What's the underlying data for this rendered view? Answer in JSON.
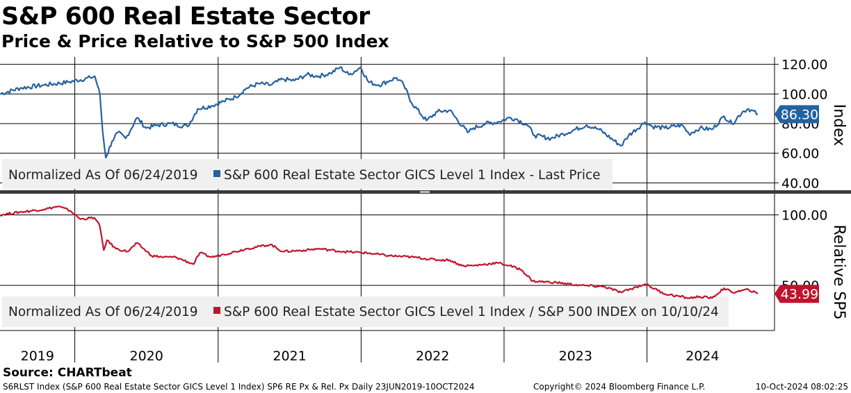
{
  "header": {
    "title": "S&P 600 Real Estate Sector",
    "subtitle": "Price & Price Relative to S&P 500 Index"
  },
  "footer": {
    "source": "Source: CHARTbeat",
    "description": "S6RLST Index (S&P 600 Real Estate Sector GICS Level 1 Index) SP6 RE Px & Rel. Px  Daily 23JUN2019-10OCT2024",
    "copyright": "Copyright© 2024 Bloomberg Finance L.P.",
    "timestamp": "10-Oct-2024 08:02:25"
  },
  "colors": {
    "price_line": "#2461a1",
    "relative_line": "#c0142c",
    "grid": "#000000",
    "legend_bg": "#f0f0f0",
    "separator": "#3a3a3a"
  },
  "chart_data": [
    {
      "type": "line",
      "panel": "top",
      "side_label": "Index",
      "legend": {
        "prefix": "Normalized As Of 06/24/2019",
        "series": "S&P 600 Real Estate Sector GICS Level 1 Index - Last Price",
        "placement": "bottom-left"
      },
      "yticks": [
        "120.00",
        "100.00",
        "80.00",
        "60.00",
        "40.00"
      ],
      "ytick_values": [
        120,
        100,
        80,
        60,
        40
      ],
      "ylim": [
        35,
        125
      ],
      "last_value": 86.3,
      "last_label": "86.30",
      "points": [
        [
          "2019-06-24",
          100
        ],
        [
          "2019-08-15",
          104
        ],
        [
          "2019-10-15",
          106
        ],
        [
          "2019-12-15",
          108
        ],
        [
          "2020-02-10",
          111
        ],
        [
          "2020-02-21",
          112
        ],
        [
          "2020-03-05",
          100
        ],
        [
          "2020-03-12",
          75
        ],
        [
          "2020-03-20",
          57
        ],
        [
          "2020-04-05",
          68
        ],
        [
          "2020-04-20",
          74
        ],
        [
          "2020-05-10",
          70
        ],
        [
          "2020-06-08",
          84
        ],
        [
          "2020-07-01",
          77
        ],
        [
          "2020-08-01",
          79
        ],
        [
          "2020-09-01",
          80
        ],
        [
          "2020-10-15",
          78
        ],
        [
          "2020-11-10",
          90
        ],
        [
          "2020-12-15",
          92
        ],
        [
          "2021-01-15",
          95
        ],
        [
          "2021-02-15",
          98
        ],
        [
          "2021-03-15",
          104
        ],
        [
          "2021-04-15",
          107
        ],
        [
          "2021-05-15",
          106
        ],
        [
          "2021-06-15",
          110
        ],
        [
          "2021-07-15",
          109
        ],
        [
          "2021-08-15",
          113
        ],
        [
          "2021-09-15",
          112
        ],
        [
          "2021-10-15",
          114
        ],
        [
          "2021-11-08",
          118
        ],
        [
          "2021-12-01",
          113
        ],
        [
          "2021-12-31",
          118
        ],
        [
          "2022-01-20",
          108
        ],
        [
          "2022-02-15",
          106
        ],
        [
          "2022-03-15",
          109
        ],
        [
          "2022-04-01",
          111
        ],
        [
          "2022-04-20",
          106
        ],
        [
          "2022-05-10",
          94
        ],
        [
          "2022-06-17",
          82
        ],
        [
          "2022-07-15",
          88
        ],
        [
          "2022-08-15",
          89
        ],
        [
          "2022-09-30",
          74
        ],
        [
          "2022-10-15",
          77
        ],
        [
          "2022-11-15",
          80
        ],
        [
          "2022-12-15",
          81
        ],
        [
          "2023-01-15",
          84
        ],
        [
          "2023-02-02",
          83
        ],
        [
          "2023-03-01",
          79
        ],
        [
          "2023-03-20",
          72
        ],
        [
          "2023-05-01",
          70
        ],
        [
          "2023-06-01",
          73
        ],
        [
          "2023-07-31",
          79
        ],
        [
          "2023-09-01",
          76
        ],
        [
          "2023-10-27",
          65
        ],
        [
          "2023-11-15",
          72
        ],
        [
          "2023-12-27",
          81
        ],
        [
          "2024-01-15",
          78
        ],
        [
          "2024-02-15",
          77
        ],
        [
          "2024-03-31",
          79
        ],
        [
          "2024-04-17",
          73
        ],
        [
          "2024-05-15",
          77
        ],
        [
          "2024-06-15",
          76
        ],
        [
          "2024-07-16",
          85
        ],
        [
          "2024-08-05",
          80
        ],
        [
          "2024-09-01",
          88
        ],
        [
          "2024-09-16",
          90
        ],
        [
          "2024-10-10",
          86.3
        ]
      ]
    },
    {
      "type": "line",
      "panel": "bottom",
      "side_label": "Relative SP5",
      "legend": {
        "prefix": "Normalized As Of 06/24/2019",
        "series": "S&P 600 Real Estate Sector GICS Level 1 Index / S&P 500 INDEX on 10/10/24",
        "placement": "bottom-left"
      },
      "yticks": [
        "100.00",
        "50.00"
      ],
      "ytick_values": [
        100,
        50
      ],
      "ylim": [
        18,
        115
      ],
      "last_value": 43.99,
      "last_label": "43.99",
      "points": [
        [
          "2019-06-24",
          100
        ],
        [
          "2019-08-15",
          102
        ],
        [
          "2019-10-15",
          104
        ],
        [
          "2019-11-20",
          106
        ],
        [
          "2019-12-20",
          103
        ],
        [
          "2020-01-15",
          97
        ],
        [
          "2020-02-20",
          98
        ],
        [
          "2020-03-05",
          92
        ],
        [
          "2020-03-15",
          75
        ],
        [
          "2020-03-23",
          82
        ],
        [
          "2020-04-15",
          76
        ],
        [
          "2020-05-15",
          74
        ],
        [
          "2020-06-08",
          80
        ],
        [
          "2020-07-15",
          71
        ],
        [
          "2020-08-15",
          70
        ],
        [
          "2020-09-15",
          70
        ],
        [
          "2020-10-30",
          65
        ],
        [
          "2020-11-15",
          73
        ],
        [
          "2020-12-15",
          70
        ],
        [
          "2021-01-15",
          72
        ],
        [
          "2021-02-15",
          74
        ],
        [
          "2021-03-15",
          76
        ],
        [
          "2021-05-15",
          79
        ],
        [
          "2021-06-15",
          74
        ],
        [
          "2021-08-15",
          75
        ],
        [
          "2021-09-15",
          76
        ],
        [
          "2021-11-15",
          74
        ],
        [
          "2022-01-15",
          73
        ],
        [
          "2022-03-15",
          71
        ],
        [
          "2022-05-15",
          70
        ],
        [
          "2022-07-15",
          68
        ],
        [
          "2022-08-15",
          68
        ],
        [
          "2022-09-15",
          64
        ],
        [
          "2022-10-15",
          64
        ],
        [
          "2022-12-15",
          66
        ],
        [
          "2023-01-15",
          64
        ],
        [
          "2023-02-15",
          61
        ],
        [
          "2023-03-15",
          53
        ],
        [
          "2023-05-15",
          52
        ],
        [
          "2023-07-15",
          50
        ],
        [
          "2023-09-15",
          49
        ],
        [
          "2023-10-27",
          45
        ],
        [
          "2023-12-27",
          51
        ],
        [
          "2024-02-15",
          44
        ],
        [
          "2024-04-17",
          41
        ],
        [
          "2024-05-15",
          42
        ],
        [
          "2024-06-15",
          41
        ],
        [
          "2024-07-16",
          48
        ],
        [
          "2024-08-05",
          45
        ],
        [
          "2024-09-16",
          47
        ],
        [
          "2024-10-10",
          43.99
        ]
      ]
    }
  ],
  "x_axis": {
    "start": "2019-06-24",
    "end": "2024-10-10",
    "years": [
      "2019",
      "2020",
      "2021",
      "2022",
      "2023",
      "2024"
    ]
  }
}
